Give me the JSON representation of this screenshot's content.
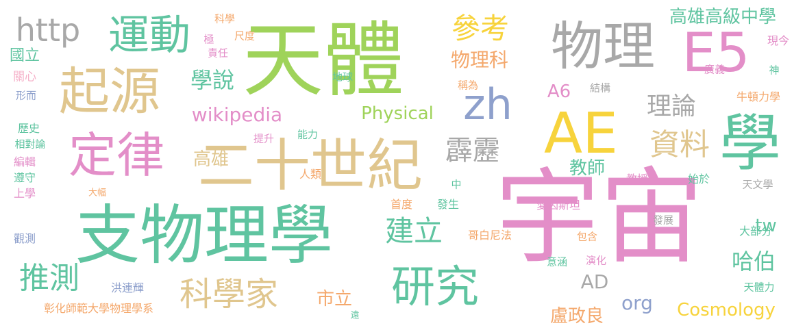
{
  "palette": {
    "green": "#9fd35a",
    "teal": "#5fc4a0",
    "tan": "#e0c68e",
    "pink": "#e38ec8",
    "gray": "#a8a8a8",
    "yellow": "#f7d33c",
    "blue": "#8ea0cc",
    "orange": "#f4a86c",
    "mint": "#7ecfb0",
    "lpink": "#f5b0c8"
  },
  "words": [
    {
      "text": "宇宙",
      "c": "pink"
    },
    {
      "text": "天體",
      "c": "green"
    },
    {
      "text": "支物理學",
      "c": "teal"
    },
    {
      "text": "二十世紀",
      "c": "tan"
    },
    {
      "text": "物理",
      "c": "gray"
    },
    {
      "text": "AE",
      "c": "yellow"
    },
    {
      "text": "E5",
      "c": "pink"
    },
    {
      "text": "學",
      "c": "teal"
    },
    {
      "text": "起源",
      "c": "tan"
    },
    {
      "text": "定律",
      "c": "pink"
    },
    {
      "text": "運動",
      "c": "teal"
    },
    {
      "text": "研究",
      "c": "teal"
    },
    {
      "text": "zh",
      "c": "blue"
    },
    {
      "text": "http",
      "c": "gray"
    },
    {
      "text": "科學家",
      "c": "tan"
    },
    {
      "text": "推測",
      "c": "teal"
    },
    {
      "text": "參考",
      "c": "yellow"
    },
    {
      "text": "霹靂",
      "c": "gray"
    },
    {
      "text": "資料",
      "c": "tan"
    },
    {
      "text": "理論",
      "c": "gray"
    },
    {
      "text": "建立",
      "c": "teal"
    },
    {
      "text": "wikipedia",
      "c": "pink"
    },
    {
      "text": "Physical",
      "c": "green"
    },
    {
      "text": "高雄高級中學",
      "c": "teal"
    },
    {
      "text": "學說",
      "c": "teal"
    },
    {
      "text": "物理科",
      "c": "orange"
    },
    {
      "text": "哈伯",
      "c": "teal"
    },
    {
      "text": "高雄",
      "c": "tan"
    },
    {
      "text": "教師",
      "c": "teal"
    },
    {
      "text": "Cosmology",
      "c": "yellow"
    },
    {
      "text": "org",
      "c": "blue"
    },
    {
      "text": "AD",
      "c": "gray"
    },
    {
      "text": "tw",
      "c": "teal"
    },
    {
      "text": "A6",
      "c": "pink"
    },
    {
      "text": "盧政良",
      "c": "orange"
    },
    {
      "text": "市立",
      "c": "orange"
    },
    {
      "text": "國立",
      "c": "teal"
    },
    {
      "text": "歷史",
      "c": "teal"
    },
    {
      "text": "現今",
      "c": "pink"
    },
    {
      "text": "廣義",
      "c": "pink"
    },
    {
      "text": "神",
      "c": "teal"
    },
    {
      "text": "牛頓力學",
      "c": "orange"
    },
    {
      "text": "結構",
      "c": "gray"
    },
    {
      "text": "稱為",
      "c": "orange"
    },
    {
      "text": "地球",
      "c": "teal"
    },
    {
      "text": "科學",
      "c": "orange"
    },
    {
      "text": "尺度",
      "c": "orange"
    },
    {
      "text": "極",
      "c": "pink"
    },
    {
      "text": "責任",
      "c": "pink"
    },
    {
      "text": "關心",
      "c": "lpink"
    },
    {
      "text": "形而",
      "c": "blue"
    },
    {
      "text": "相對論",
      "c": "teal"
    },
    {
      "text": "編輯",
      "c": "pink"
    },
    {
      "text": "遵守",
      "c": "teal"
    },
    {
      "text": "上學",
      "c": "pink"
    },
    {
      "text": "大幅",
      "c": "orange"
    },
    {
      "text": "提升",
      "c": "pink"
    },
    {
      "text": "能力",
      "c": "teal"
    },
    {
      "text": "人類",
      "c": "orange"
    },
    {
      "text": "教授",
      "c": "pink"
    },
    {
      "text": "始於",
      "c": "teal"
    },
    {
      "text": "天文學",
      "c": "gray"
    },
    {
      "text": "中",
      "c": "teal"
    },
    {
      "text": "首度",
      "c": "orange"
    },
    {
      "text": "發生",
      "c": "teal"
    },
    {
      "text": "愛因斯坦",
      "c": "pink"
    },
    {
      "text": "發展",
      "c": "gray"
    },
    {
      "text": "哥白尼法",
      "c": "orange"
    },
    {
      "text": "包含",
      "c": "orange"
    },
    {
      "text": "大部分",
      "c": "teal"
    },
    {
      "text": "意涵",
      "c": "teal"
    },
    {
      "text": "演化",
      "c": "pink"
    },
    {
      "text": "天體力",
      "c": "teal"
    },
    {
      "text": "洪連輝",
      "c": "blue"
    },
    {
      "text": "觀測",
      "c": "blue"
    },
    {
      "text": "彰化師範大學物理學系",
      "c": "orange"
    },
    {
      "text": "遠",
      "c": "teal"
    }
  ]
}
